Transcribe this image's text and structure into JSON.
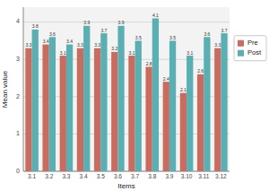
{
  "chart_data": {
    "type": "bar",
    "xlabel": "Items",
    "ylabel": "Mean value",
    "categories": [
      "3.1",
      "3.2",
      "3.3",
      "3.4",
      "3.5",
      "3.6",
      "3.7",
      "3.8",
      "3.9",
      "3.10",
      "3.11",
      "3.12"
    ],
    "series": [
      {
        "name": "Pre",
        "color": "#c96b5e",
        "values": [
          3.3,
          3.4,
          3.1,
          3.3,
          3.3,
          3.2,
          3.1,
          2.8,
          2.4,
          2.1,
          2.6,
          3.3
        ]
      },
      {
        "name": "Post",
        "color": "#5aafb2",
        "values": [
          3.8,
          3.6,
          3.4,
          3.9,
          3.7,
          3.9,
          3.5,
          4.1,
          3.5,
          3.1,
          3.6,
          3.7
        ]
      }
    ],
    "ylim": [
      0,
      4.4
    ],
    "yticks": [
      0,
      1,
      2,
      3,
      4
    ],
    "grid": true,
    "legend": "right",
    "data_labels": true
  }
}
